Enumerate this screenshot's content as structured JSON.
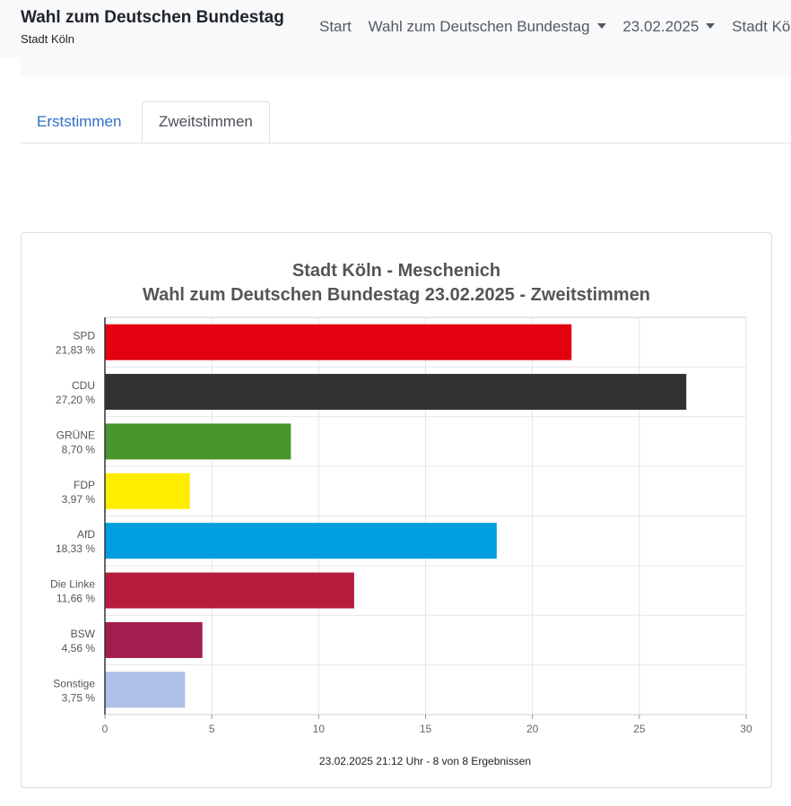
{
  "header": {
    "title": "Wahl zum Deutschen Bundestag",
    "subtitle": "Stadt Köln"
  },
  "nav": {
    "items": [
      {
        "label": "Start",
        "dropdown": false
      },
      {
        "label": "Wahl zum Deutschen Bundestag",
        "dropdown": true
      },
      {
        "label": "23.02.2025",
        "dropdown": true
      },
      {
        "label": "Stadt Köln",
        "dropdown": false
      }
    ]
  },
  "tabs": [
    {
      "label": "Erststimmen",
      "active": false
    },
    {
      "label": "Zweitstimmen",
      "active": true
    }
  ],
  "chart_data": {
    "type": "bar",
    "orientation": "horizontal",
    "title": "Stadt Köln - Meschenich",
    "subtitle": "Wahl zum Deutschen Bundestag 23.02.2025  - Zweitstimmen",
    "categories": [
      "SPD",
      "CDU",
      "GRÜNE",
      "FDP",
      "AfD",
      "Die Linke",
      "BSW",
      "Sonstige"
    ],
    "value_labels": [
      "21,83 %",
      "27,20 %",
      "8,70 %",
      "3,97 %",
      "18,33 %",
      "11,66 %",
      "4,56 %",
      "3,75 %"
    ],
    "values": [
      21.83,
      27.2,
      8.7,
      3.97,
      18.33,
      11.66,
      4.56,
      3.75
    ],
    "colors": [
      "#e3000f",
      "#323232",
      "#46962b",
      "#ffed00",
      "#009ee0",
      "#b61c3e",
      "#a21e4e",
      "#aec0e6"
    ],
    "xlim": [
      0,
      30
    ],
    "xticks": [
      0,
      5,
      10,
      15,
      20,
      25,
      30
    ],
    "grid": true,
    "footer": "23.02.2025 21:12 Uhr - 8 von 8 Ergebnissen"
  }
}
